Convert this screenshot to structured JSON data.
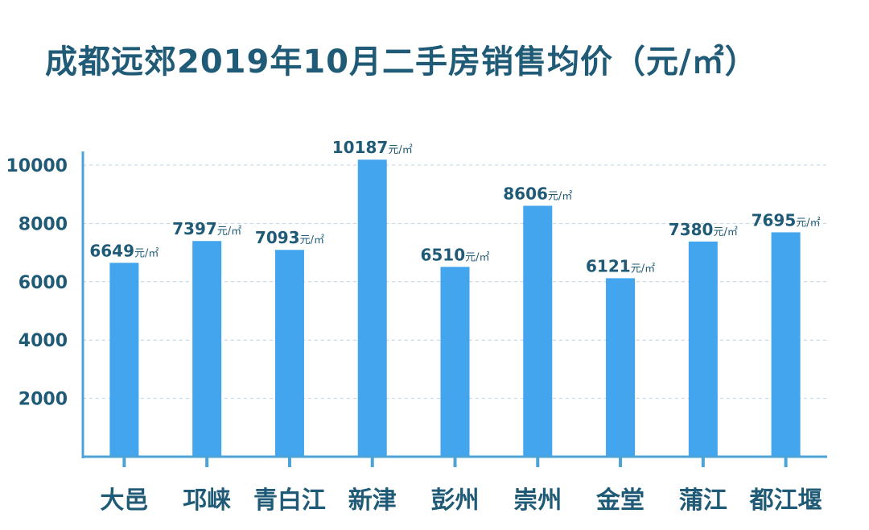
{
  "title": "成都远郊2019年10月二手房销售均价（元/㎡）",
  "chart_data": {
    "type": "bar",
    "title": "成都远郊2019年10月二手房销售均价（元/㎡）",
    "categories": [
      "大邑",
      "邛崃",
      "青白江",
      "新津",
      "彭州",
      "崇州",
      "金堂",
      "蒲江",
      "都江堰"
    ],
    "values": [
      6649,
      7397,
      7093,
      10187,
      6510,
      8606,
      6121,
      7380,
      7695
    ],
    "unit": "元/㎡",
    "yticks": [
      2000,
      4000,
      6000,
      8000,
      10000
    ],
    "ylim": [
      0,
      10000
    ],
    "grid": true,
    "bar_color": "#42a5ee",
    "axis_color": "#4ba3d8",
    "text_color": "#1f5a76"
  }
}
